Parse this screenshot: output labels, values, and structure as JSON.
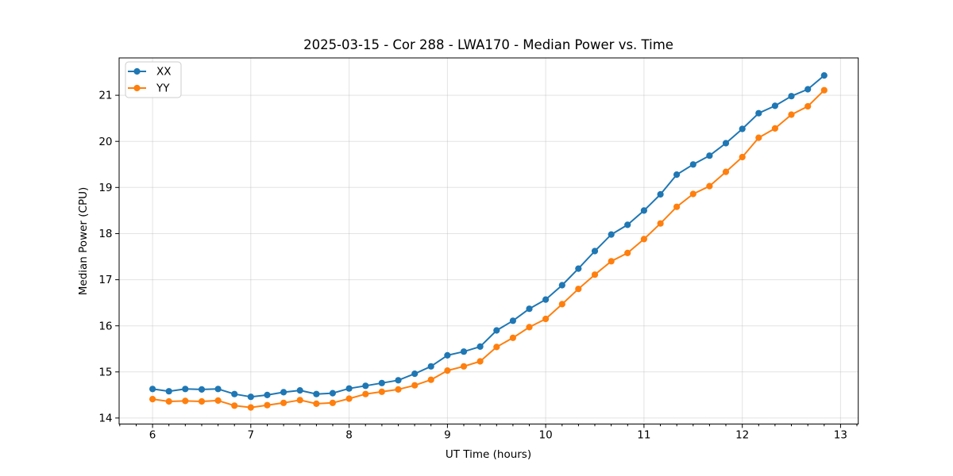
{
  "chart_data": {
    "type": "line",
    "title": "2025-03-15 - Cor 288 - LWA170 - Median Power vs. Time",
    "xlabel": "UT Time (hours)",
    "ylabel": "Median Power (CPU)",
    "xlim": [
      5.66,
      13.18
    ],
    "ylim": [
      13.87,
      21.81
    ],
    "x_ticks": [
      6,
      7,
      8,
      9,
      10,
      11,
      12,
      13
    ],
    "y_ticks": [
      14,
      15,
      16,
      17,
      18,
      19,
      20,
      21
    ],
    "x_minor_step": 0.1667,
    "grid": true,
    "legend_position": "upper-left",
    "x": [
      6.0,
      6.167,
      6.333,
      6.5,
      6.667,
      6.833,
      7.0,
      7.167,
      7.333,
      7.5,
      7.667,
      7.833,
      8.0,
      8.167,
      8.333,
      8.5,
      8.667,
      8.833,
      9.0,
      9.167,
      9.333,
      9.5,
      9.667,
      9.833,
      10.0,
      10.167,
      10.333,
      10.5,
      10.667,
      10.833,
      11.0,
      11.167,
      11.333,
      11.5,
      11.667,
      11.833,
      12.0,
      12.167,
      12.333,
      12.5,
      12.667,
      12.833
    ],
    "series": [
      {
        "name": "XX",
        "color": "#1f77b4",
        "values": [
          14.63,
          14.58,
          14.63,
          14.62,
          14.63,
          14.52,
          14.46,
          14.5,
          14.56,
          14.6,
          14.52,
          14.54,
          14.64,
          14.7,
          14.76,
          14.82,
          14.96,
          15.12,
          15.36,
          15.44,
          15.55,
          15.9,
          16.11,
          16.37,
          16.57,
          16.88,
          17.24,
          17.62,
          17.98,
          18.19,
          18.5,
          18.85,
          19.28,
          19.5,
          19.69,
          19.96,
          20.27,
          20.61,
          20.77,
          20.98,
          21.13,
          21.43
        ]
      },
      {
        "name": "YY",
        "color": "#ff7f0e",
        "values": [
          14.41,
          14.36,
          14.37,
          14.36,
          14.38,
          14.27,
          14.23,
          14.28,
          14.33,
          14.39,
          14.31,
          14.33,
          14.42,
          14.52,
          14.57,
          14.62,
          14.71,
          14.83,
          15.03,
          15.12,
          15.23,
          15.54,
          15.74,
          15.97,
          16.15,
          16.47,
          16.8,
          17.11,
          17.4,
          17.58,
          17.88,
          18.22,
          18.58,
          18.86,
          19.03,
          19.34,
          19.66,
          20.08,
          20.28,
          20.58,
          20.76,
          21.11
        ]
      }
    ]
  }
}
